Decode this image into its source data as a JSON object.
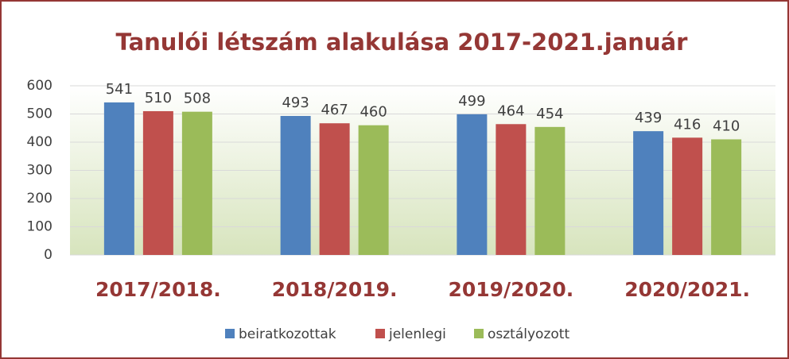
{
  "chart_data": {
    "type": "bar",
    "title": "Tanulói létszám alakulása 2017-2021.január",
    "categories": [
      "2017/2018.",
      "2018/2019.",
      "2019/2020.",
      "2020/2021."
    ],
    "series": [
      {
        "name": "beiratkozottak",
        "color": "#4f81bd",
        "values": [
          541,
          493,
          499,
          439
        ]
      },
      {
        "name": "jelenlegi",
        "color": "#c0504d",
        "values": [
          510,
          467,
          464,
          416
        ]
      },
      {
        "name": "osztályozott",
        "color": "#9bbb59",
        "values": [
          508,
          460,
          454,
          410
        ]
      }
    ],
    "ylim": [
      0,
      600
    ],
    "yticks": [
      0,
      100,
      200,
      300,
      400,
      500,
      600
    ],
    "grid": true,
    "legend": "bottom"
  }
}
